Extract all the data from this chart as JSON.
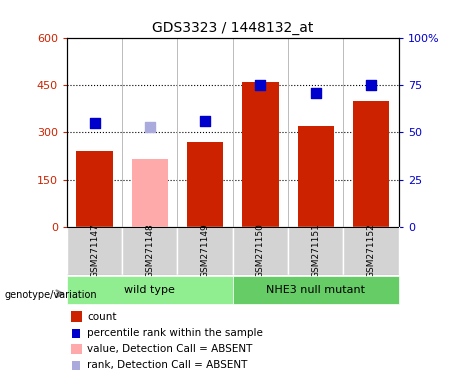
{
  "title": "GDS3323 / 1448132_at",
  "samples": [
    "GSM271147",
    "GSM271148",
    "GSM271149",
    "GSM271150",
    "GSM271151",
    "GSM271152"
  ],
  "count_values": [
    240,
    null,
    270,
    460,
    320,
    400
  ],
  "count_absent_values": [
    null,
    215,
    null,
    null,
    null,
    null
  ],
  "rank_values": [
    55,
    null,
    56,
    75,
    71,
    75
  ],
  "rank_absent_values": [
    null,
    53,
    null,
    null,
    null,
    null
  ],
  "groups": [
    {
      "label": "wild type",
      "color": "#90EE90",
      "indices": [
        0,
        1,
        2
      ]
    },
    {
      "label": "NHE3 null mutant",
      "color": "#66CC66",
      "indices": [
        3,
        4,
        5
      ]
    }
  ],
  "ylim_left": [
    0,
    600
  ],
  "ylim_right": [
    0,
    100
  ],
  "yticks_left": [
    0,
    150,
    300,
    450,
    600
  ],
  "yticks_right": [
    0,
    25,
    50,
    75,
    100
  ],
  "ytick_labels_left": [
    "0",
    "150",
    "300",
    "450",
    "600"
  ],
  "ytick_labels_right": [
    "0",
    "25",
    "50",
    "75",
    "100%"
  ],
  "color_count": "#CC2200",
  "color_count_absent": "#FFAAAA",
  "color_rank": "#0000CC",
  "color_rank_absent": "#AAAADD",
  "bar_width": 0.3,
  "rank_marker_size": 55,
  "background_plot": "#FFFFFF",
  "background_sample": "#D3D3D3",
  "legend_items": [
    {
      "label": "count",
      "color": "#CC2200",
      "type": "bar"
    },
    {
      "label": "percentile rank within the sample",
      "color": "#0000CC",
      "type": "square"
    },
    {
      "label": "value, Detection Call = ABSENT",
      "color": "#FFAAAA",
      "type": "bar"
    },
    {
      "label": "rank, Detection Call = ABSENT",
      "color": "#AAAADD",
      "type": "square"
    }
  ]
}
